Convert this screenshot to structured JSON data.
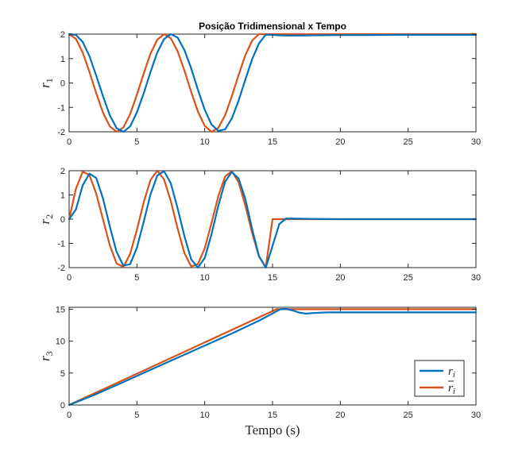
{
  "figure_title": "Posição Tridimensional x Tempo",
  "xlabel": "Tempo (s)",
  "colors": {
    "ri": "#0072BD",
    "rbar": "#D95319",
    "axes": "#262626"
  },
  "legend": {
    "placement": "bottom-right",
    "entries": [
      {
        "series": "ri",
        "base": "r",
        "sub": "i",
        "bar": false
      },
      {
        "series": "rbar",
        "base": "r",
        "sub": "i",
        "bar": true
      }
    ]
  },
  "chart_data": [
    {
      "type": "line",
      "title": "Posição Tridimensional x Tempo",
      "ylabel": {
        "base": "r",
        "sub": "1"
      },
      "xlim": [
        0,
        30
      ],
      "ylim": [
        -2,
        2
      ],
      "xticks": [
        0,
        5,
        10,
        15,
        20,
        25,
        30
      ],
      "yticks": [
        -2,
        -1,
        0,
        1,
        2
      ],
      "grid": false,
      "series": [
        {
          "key": "rbar",
          "x": [
            0,
            0.5,
            1,
            1.5,
            2,
            2.5,
            3,
            3.5,
            4,
            4.5,
            5,
            5.5,
            6,
            6.5,
            7,
            7.5,
            8,
            8.5,
            9,
            9.5,
            10,
            10.5,
            11,
            11.5,
            12,
            12.5,
            13,
            13.5,
            14,
            14.5,
            15,
            15.5,
            16,
            17,
            18,
            20,
            22,
            24,
            26,
            28,
            30
          ],
          "y": [
            2,
            1.81,
            1.25,
            0.45,
            -0.42,
            -1.22,
            -1.78,
            -2,
            -1.82,
            -1.27,
            -0.48,
            0.39,
            1.2,
            1.77,
            2,
            1.83,
            1.3,
            0.51,
            -0.36,
            -1.17,
            -1.76,
            -2,
            -1.84,
            -1.32,
            -0.54,
            0.33,
            1.15,
            1.74,
            2,
            2,
            2,
            2,
            2,
            2,
            2,
            2,
            2,
            2,
            2,
            2,
            2
          ]
        },
        {
          "key": "ri",
          "x": [
            0,
            0.5,
            1,
            1.5,
            2,
            2.5,
            3,
            3.5,
            4,
            4.5,
            5,
            5.5,
            6,
            6.5,
            7,
            7.5,
            8,
            8.5,
            9,
            9.5,
            10,
            10.5,
            11,
            11.5,
            12,
            12.5,
            13,
            13.5,
            14,
            14.5,
            15,
            15.5,
            16,
            17,
            18,
            20,
            22,
            24,
            26,
            28,
            30
          ],
          "y": [
            2,
            1.97,
            1.68,
            1.1,
            0.3,
            -0.55,
            -1.32,
            -1.85,
            -2,
            -1.78,
            -1.2,
            -0.42,
            0.45,
            1.25,
            1.8,
            2,
            1.86,
            1.35,
            0.6,
            -0.28,
            -1.1,
            -1.7,
            -1.96,
            -1.9,
            -1.45,
            -0.72,
            0.15,
            0.98,
            1.62,
            1.98,
            1.97,
            1.95,
            1.94,
            1.94,
            1.95,
            1.96,
            1.96,
            1.97,
            1.97,
            1.97,
            1.97
          ]
        }
      ]
    },
    {
      "type": "line",
      "ylabel": {
        "base": "r",
        "sub": "2"
      },
      "xlim": [
        0,
        30
      ],
      "ylim": [
        -2,
        2
      ],
      "xticks": [
        0,
        5,
        10,
        15,
        20,
        25,
        30
      ],
      "yticks": [
        -2,
        -1,
        0,
        1,
        2
      ],
      "grid": false,
      "series": [
        {
          "key": "rbar",
          "x": [
            0,
            0.5,
            1,
            1.5,
            2,
            2.5,
            3,
            3.5,
            4,
            4.5,
            5,
            5.5,
            6,
            6.5,
            7,
            7.5,
            8,
            8.5,
            9,
            9.5,
            10,
            10.5,
            11,
            11.5,
            12,
            12.5,
            13,
            13.5,
            14,
            14.5,
            15,
            15.5,
            16,
            18,
            20,
            22,
            24,
            26,
            28,
            30
          ],
          "y": [
            0,
            1.25,
            1.96,
            1.82,
            1.05,
            -0.02,
            -1.08,
            -1.83,
            -1.97,
            -1.43,
            -0.44,
            0.7,
            1.62,
            2,
            1.64,
            0.74,
            -0.38,
            -1.4,
            -1.95,
            -1.86,
            -1.2,
            -0.16,
            0.94,
            1.76,
            1.98,
            1.52,
            0.55,
            -0.58,
            -1.54,
            -1.98,
            0,
            0,
            0,
            0,
            0,
            0,
            0,
            0,
            0,
            0
          ]
        },
        {
          "key": "ri",
          "x": [
            0,
            0.5,
            1,
            1.5,
            2,
            2.5,
            3,
            3.5,
            4,
            4.5,
            5,
            5.5,
            6,
            6.5,
            7,
            7.5,
            8,
            8.5,
            9,
            9.5,
            10,
            10.5,
            11,
            11.5,
            12,
            12.5,
            13,
            13.5,
            14,
            14.5,
            15,
            15.5,
            16,
            18,
            20,
            22,
            24,
            26,
            28,
            30
          ],
          "y": [
            0,
            0.4,
            1.4,
            1.88,
            1.7,
            0.85,
            -0.3,
            -1.35,
            -1.92,
            -1.86,
            -1.18,
            -0.1,
            1.02,
            1.8,
            1.98,
            1.48,
            0.45,
            -0.7,
            -1.66,
            -2,
            -1.6,
            -0.62,
            0.55,
            1.55,
            1.95,
            1.68,
            0.82,
            -0.42,
            -1.52,
            -2,
            -1.1,
            -0.2,
            0.03,
            0.01,
            0,
            0,
            0,
            0,
            0,
            0
          ]
        }
      ]
    },
    {
      "type": "line",
      "ylabel": {
        "base": "r",
        "sub": "3"
      },
      "xlim": [
        0,
        30
      ],
      "ylim": [
        0,
        15.3
      ],
      "xticks": [
        0,
        5,
        10,
        15,
        20,
        25,
        30
      ],
      "yticks": [
        0,
        5,
        10,
        15
      ],
      "grid": false,
      "series": [
        {
          "key": "rbar",
          "x": [
            0,
            15.3,
            16,
            18,
            20,
            25,
            30
          ],
          "y": [
            0,
            15,
            15,
            15,
            15,
            15,
            15
          ]
        },
        {
          "key": "ri",
          "x": [
            0,
            2,
            4,
            6,
            8,
            10,
            12,
            14,
            15.6,
            16,
            16.5,
            17,
            17.5,
            18,
            19,
            20,
            22,
            25,
            30
          ],
          "y": [
            0,
            1.7,
            3.6,
            5.5,
            7.4,
            9.3,
            11.2,
            13.2,
            15.02,
            15.05,
            14.8,
            14.45,
            14.3,
            14.4,
            14.5,
            14.5,
            14.5,
            14.5,
            14.5
          ]
        }
      ]
    }
  ]
}
